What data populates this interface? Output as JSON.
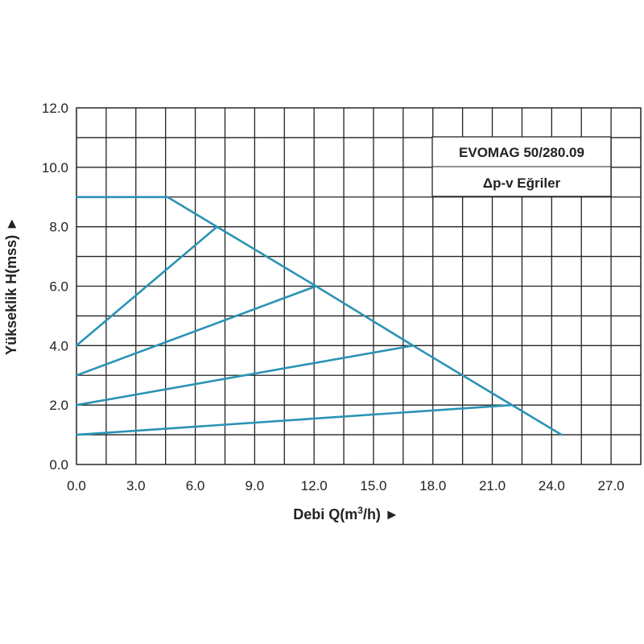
{
  "chart_data": {
    "type": "line",
    "title_box": {
      "line1": "EVOMAG 50/280.09",
      "line2": "Δp-v Eğriler"
    },
    "xlabel": "Debi Q(m",
    "xlabel_sup": "3",
    "xlabel_tail": "/h) ►",
    "ylabel": "Yükseklik H(mss) ►",
    "xlim": [
      0,
      28.5
    ],
    "ylim": [
      0,
      12
    ],
    "x_ticks": [
      "0.0",
      "3.0",
      "6.0",
      "9.0",
      "12.0",
      "15.0",
      "18.0",
      "21.0",
      "24.0",
      "27.0"
    ],
    "x_tick_values": [
      0,
      3,
      6,
      9,
      12,
      15,
      18,
      21,
      24,
      27
    ],
    "y_ticks": [
      "0.0",
      "2.0",
      "4.0",
      "6.0",
      "8.0",
      "10.0",
      "12.0"
    ],
    "y_tick_values": [
      0,
      2,
      4,
      6,
      8,
      10,
      12
    ],
    "grid": true,
    "line_color": "#2a93b5",
    "series": [
      {
        "x": [
          0,
          4.6,
          7.1,
          12.1,
          17.0,
          22.0,
          24.5
        ],
        "y": [
          9,
          9,
          8,
          6,
          4,
          2,
          1
        ]
      },
      {
        "x": [
          0,
          7.1
        ],
        "y": [
          4,
          8
        ]
      },
      {
        "x": [
          0,
          12.1
        ],
        "y": [
          3,
          6
        ]
      },
      {
        "x": [
          0,
          17.0
        ],
        "y": [
          2,
          4
        ]
      },
      {
        "x": [
          0,
          22.0
        ],
        "y": [
          1,
          2
        ]
      }
    ]
  }
}
